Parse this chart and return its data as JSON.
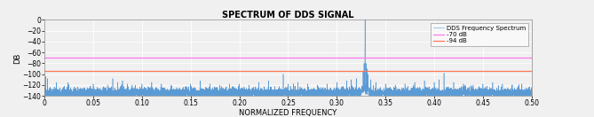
{
  "title": "SPECTRUM OF DDS SIGNAL",
  "xlabel": "NORMALIZED FREQUENCY",
  "ylabel": "DB",
  "xlim": [
    0,
    0.5
  ],
  "ylim": [
    -140,
    0
  ],
  "yticks": [
    0,
    -20,
    -40,
    -60,
    -80,
    -100,
    -120,
    -140
  ],
  "xticks": [
    0,
    0.05,
    0.1,
    0.15,
    0.2,
    0.25,
    0.3,
    0.35,
    0.4,
    0.45,
    0.5
  ],
  "line_color": "#5b9bd5",
  "hline1_y": -70,
  "hline1_color": "#ff77ee",
  "hline1_label": "-70 dB",
  "hline2_y": -94,
  "hline2_color": "#ff7755",
  "hline2_label": "-94 dB",
  "spectrum_label": "DDS Frequency Spectrum",
  "noise_floor": -135,
  "noise_std": 5,
  "signal_freq": 0.329,
  "signal_amplitude": 0,
  "bg_color": "#f0f0f0",
  "axes_bg": "#f0f0f0",
  "grid_color": "#ffffff",
  "title_fontsize": 7,
  "label_fontsize": 6,
  "tick_fontsize": 5.5
}
